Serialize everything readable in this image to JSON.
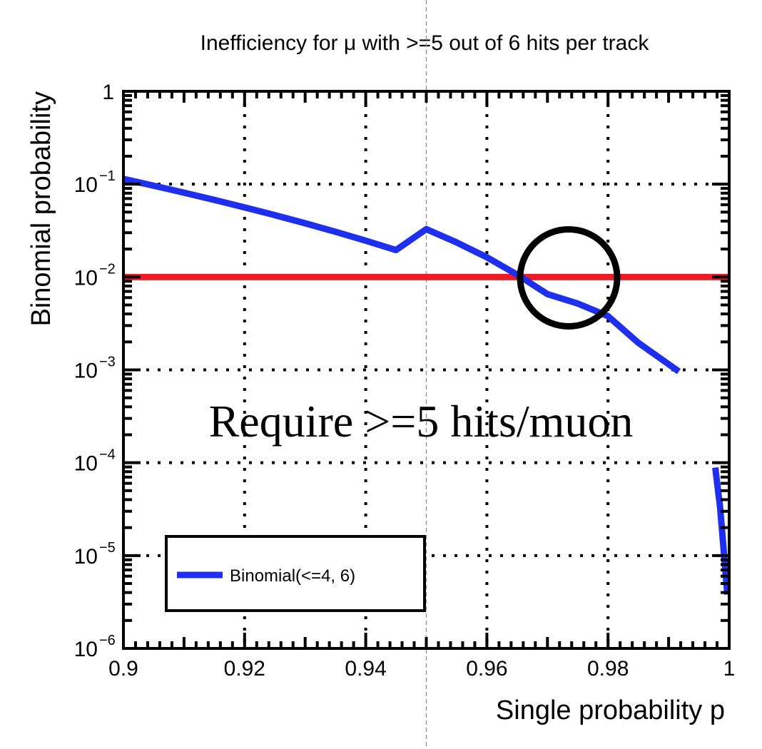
{
  "chart_data": {
    "type": "line",
    "title": "Inefficiency for μ with >=5 out of 6 hits per track",
    "xlabel": "Single probability p",
    "ylabel": "Binomial probability",
    "xlim": [
      0.9,
      1.0
    ],
    "ylim": [
      1e-06,
      1
    ],
    "yscale": "log",
    "grid": true,
    "x_ticks": [
      "0.9",
      "0.92",
      "0.94",
      "0.96",
      "0.98",
      "1"
    ],
    "y_ticks": [
      {
        "base": "10",
        "exp": "−6"
      },
      {
        "base": "10",
        "exp": "−5"
      },
      {
        "base": "10",
        "exp": "−4"
      },
      {
        "base": "10",
        "exp": "−3"
      },
      {
        "base": "10",
        "exp": "−2"
      },
      {
        "base": "10",
        "exp": "−1"
      },
      {
        "base": "1",
        "exp": ""
      }
    ],
    "legend": {
      "placement": "bottom-left",
      "entries": [
        "Binomial(<=4, 6)"
      ]
    },
    "series": [
      {
        "name": "Binomial(<=4, 6)",
        "color": "#1f2ff0",
        "segments": [
          [
            [
              0.9,
              0.114
            ],
            [
              0.905,
              0.0962
            ],
            [
              0.91,
              0.0809
            ],
            [
              0.915,
              0.0677
            ],
            [
              0.92,
              0.0562
            ],
            [
              0.925,
              0.0464
            ],
            [
              0.93,
              0.0379
            ],
            [
              0.935,
              0.0307
            ],
            [
              0.94,
              0.0246
            ],
            [
              0.945,
              0.0195
            ],
            [
              0.95,
              0.0328
            ],
            [
              0.955,
              0.0236
            ],
            [
              0.96,
              0.0163
            ],
            [
              0.965,
              0.0106
            ],
            [
              0.97,
              0.00654
            ],
            [
              0.975,
              0.00518
            ],
            [
              0.98,
              0.00379
            ],
            [
              0.985,
              0.00196
            ],
            [
              0.9917,
              0.00096
            ]
          ],
          [
            [
              0.9977,
              8.87e-05
            ],
            [
              0.9985,
              3.29e-05
            ],
            [
              0.9997,
              3.8e-06
            ]
          ]
        ]
      }
    ],
    "threshold": {
      "y": 0.01,
      "color": "#ee1c24"
    },
    "highlight_circle": {
      "x": 0.9735,
      "y": 0.0098
    },
    "annotation": "Require >=5 hits/muon",
    "p_cut": 0.95
  }
}
